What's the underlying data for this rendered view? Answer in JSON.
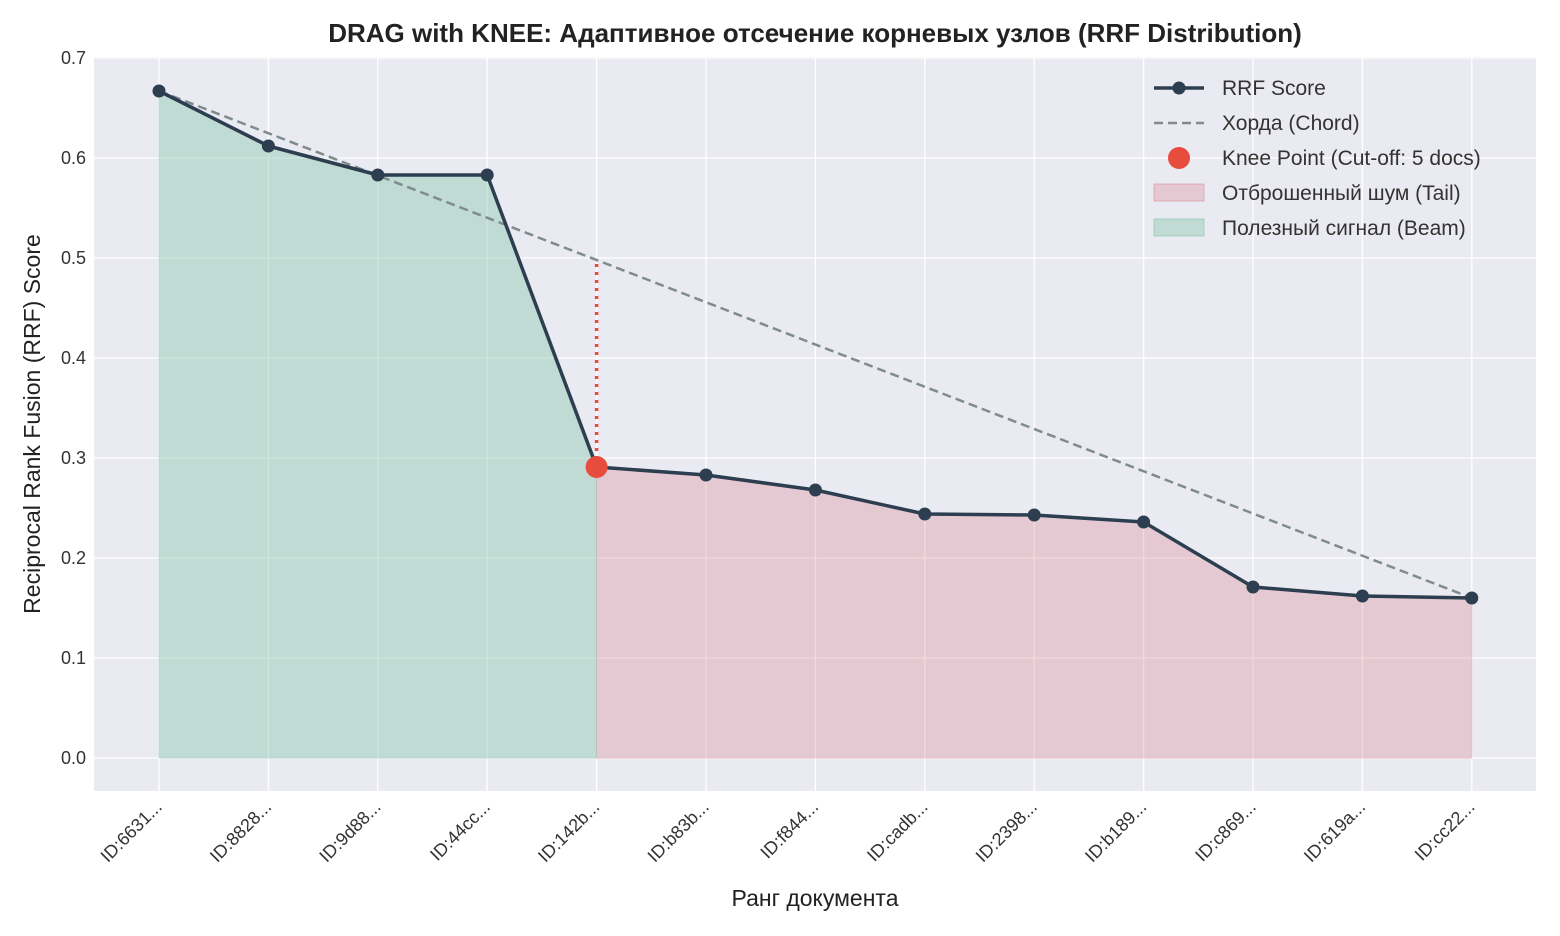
{
  "chart_data": {
    "type": "line",
    "title": "DRAG with KNEE: Адаптивное отсечение корневых узлов (RRF Distribution)",
    "xlabel": "Ранг документа",
    "ylabel": "Reciprocal Rank Fusion (RRF) Score",
    "ylim": [
      0.0,
      0.7
    ],
    "yticks": [
      "0.0",
      "0.1",
      "0.2",
      "0.3",
      "0.4",
      "0.5",
      "0.6",
      "0.7"
    ],
    "categories": [
      "ID:6631...",
      "ID:8828...",
      "ID:9d88...",
      "ID:44cc...",
      "ID:142b...",
      "ID:b83b...",
      "ID:f844...",
      "ID:cadb...",
      "ID:2398...",
      "ID:b189...",
      "ID:c869...",
      "ID:619a...",
      "ID:cc22..."
    ],
    "series": [
      {
        "name": "RRF Score",
        "values": [
          0.667,
          0.612,
          0.583,
          0.583,
          0.291,
          0.283,
          0.268,
          0.244,
          0.243,
          0.236,
          0.171,
          0.162,
          0.16
        ]
      }
    ],
    "chord": {
      "name": "Хорда (Chord)",
      "start_index": 0,
      "end_index": 12
    },
    "knee": {
      "name": "Knee Point (Cut-off: 5 docs)",
      "index": 4,
      "value": 0.291
    },
    "regions": [
      {
        "name": "Отброшенный шум (Tail)",
        "from_index": 4,
        "to_index": 12,
        "color": "#dc7f88"
      },
      {
        "name": "Полезный сигнал (Beam)",
        "from_index": 0,
        "to_index": 4,
        "color": "#82c4a8"
      }
    ],
    "legend": [
      "RRF Score",
      "Хорда (Chord)",
      "Knee Point (Cut-off: 5 docs)",
      "Отброшенный шум (Tail)",
      "Полезный сигнал (Beam)"
    ],
    "legend_position": "top-right",
    "grid": true,
    "colors": {
      "line": "#2c3e50",
      "chord": "#7f8c8d",
      "knee": "#e74c3c",
      "background": "#eaeaf2"
    }
  }
}
